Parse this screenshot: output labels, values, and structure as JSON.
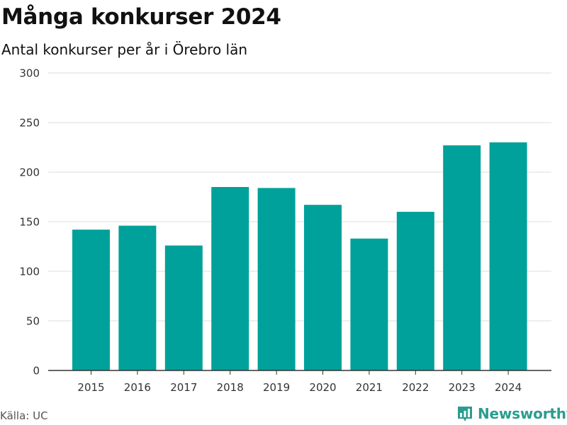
{
  "title": "Många konkurser 2024",
  "subtitle": "Antal konkurser per år i Örebro län",
  "source": "Källa: UC",
  "brand": {
    "name": "Newsworthy",
    "icon": "newsworthy-logo-icon",
    "color": "#2a9d8f"
  },
  "colors": {
    "bar": "#00a19a",
    "grid": "#dddddd",
    "axis": "#333333"
  },
  "chart_data": {
    "type": "bar",
    "categories": [
      "2015",
      "2016",
      "2017",
      "2018",
      "2019",
      "2020",
      "2021",
      "2022",
      "2023",
      "2024"
    ],
    "values": [
      142,
      146,
      126,
      185,
      184,
      167,
      133,
      160,
      227,
      230
    ],
    "title": "Många konkurser 2024",
    "subtitle": "Antal konkurser per år i Örebro län",
    "xlabel": "",
    "ylabel": "",
    "ylim": [
      0,
      300
    ],
    "yticks": [
      0,
      50,
      100,
      150,
      200,
      250,
      300
    ],
    "grid": true,
    "legend": "none"
  }
}
